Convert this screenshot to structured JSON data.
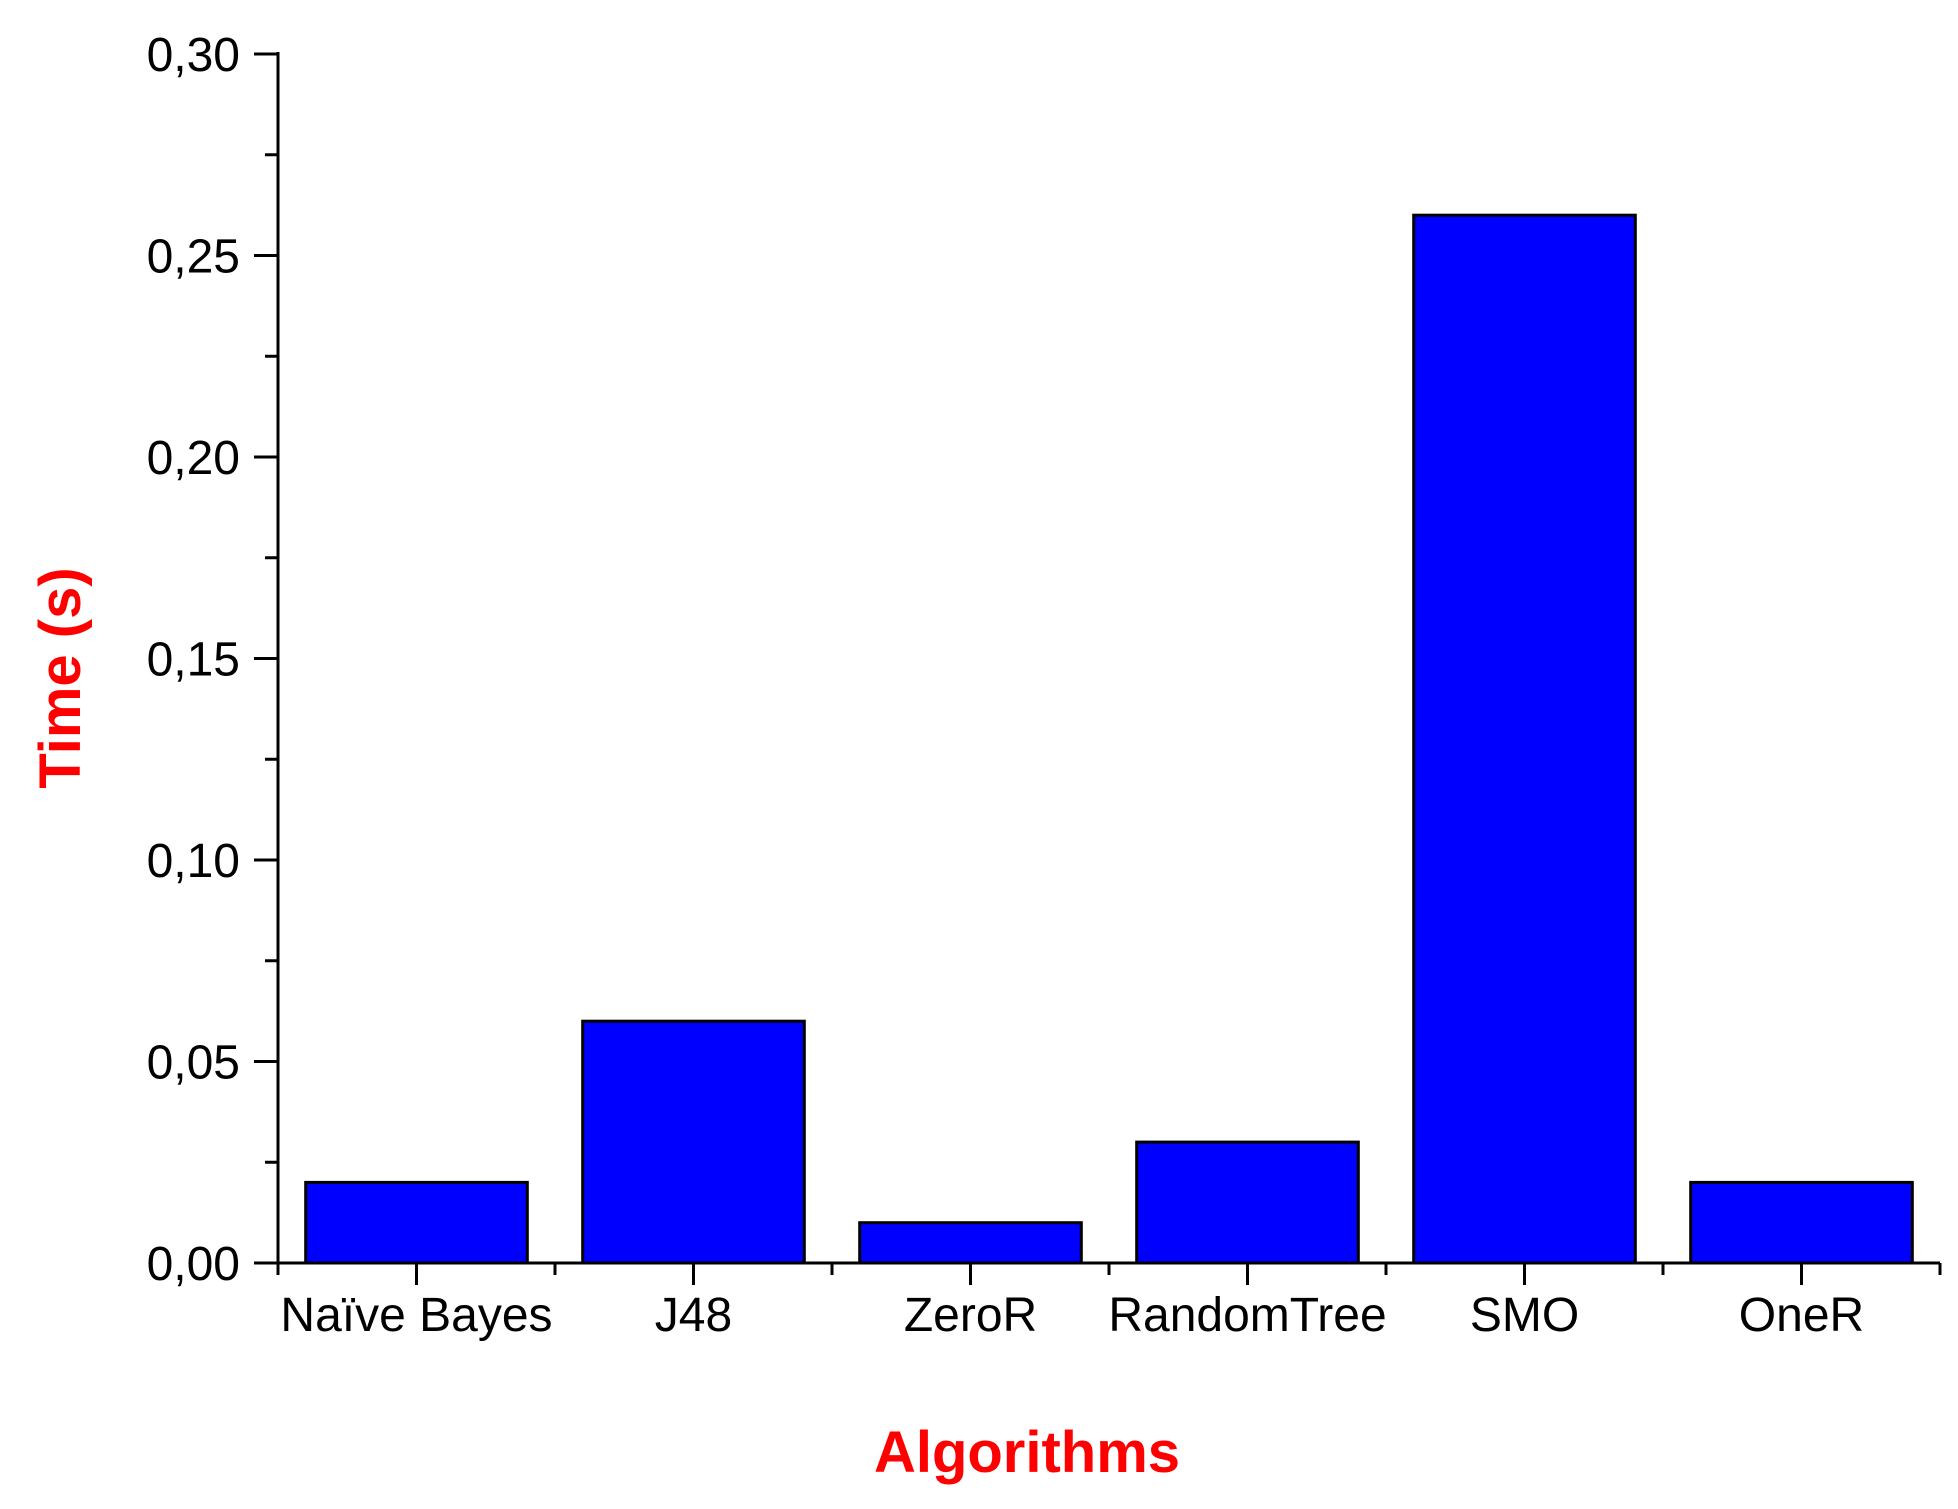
{
  "chart_data": {
    "type": "bar",
    "categories": [
      "Naïve Bayes",
      "J48",
      "ZeroR",
      "RandomTree",
      "SMO",
      "OneR"
    ],
    "values": [
      0.02,
      0.06,
      0.01,
      0.03,
      0.26,
      0.02
    ],
    "xlabel": "Algorithms",
    "ylabel": "Time (s)",
    "ylim": [
      0,
      0.3
    ],
    "yticks": [
      "0,00",
      "0,05",
      "0,10",
      "0,15",
      "0,20",
      "0,25",
      "0,30"
    ],
    "grid": false,
    "legend": "none",
    "colors": {
      "bar_fill": "#0000FF",
      "bar_stroke": "#000000",
      "axis_title": "#FF0000",
      "axis": "#000000"
    }
  }
}
